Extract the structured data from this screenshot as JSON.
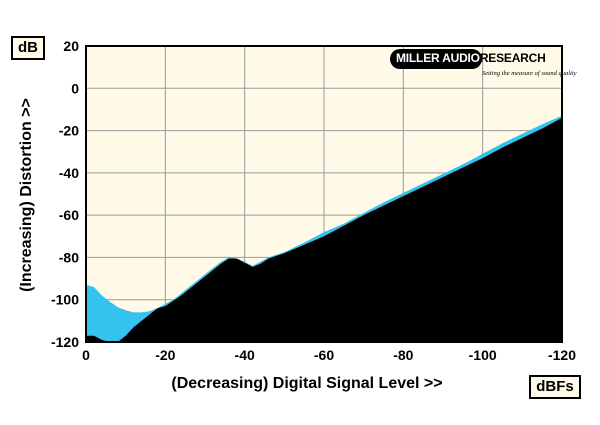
{
  "chart_data": {
    "type": "area",
    "xlabel": "(Decreasing) Digital Signal Level >>",
    "ylabel": "(Increasing) Distortion >>",
    "x_unit": "dBFs",
    "y_unit": "dB",
    "xlim": [
      0,
      -120
    ],
    "ylim": [
      -120,
      20
    ],
    "x_ticks": [
      "0",
      "-20",
      "-40",
      "-60",
      "-80",
      "-100",
      "-120"
    ],
    "y_ticks": [
      "20",
      "0",
      "-20",
      "-40",
      "-60",
      "-80",
      "-100",
      "-120"
    ],
    "grid": true,
    "series": [
      {
        "color": "#33c3ee",
        "x": [
          0,
          -2,
          -4,
          -6,
          -8,
          -10,
          -12,
          -14,
          -16,
          -18,
          -20,
          -22,
          -24,
          -26,
          -28,
          -30,
          -32,
          -34,
          -36,
          -38,
          -40,
          -42,
          -44,
          -46,
          -50,
          -55,
          -60,
          -65,
          -70,
          -75,
          -80,
          -85,
          -90,
          -95,
          -100,
          -105,
          -110,
          -115,
          -120
        ],
        "y": [
          -93,
          -94,
          -98,
          -101,
          -103.5,
          -105,
          -106,
          -106,
          -105.5,
          -104,
          -102,
          -100,
          -97,
          -94,
          -91,
          -88,
          -85,
          -82,
          -80,
          -80.5,
          -82,
          -84,
          -82,
          -80,
          -77.5,
          -73,
          -68,
          -64,
          -59,
          -54,
          -49.5,
          -45,
          -40.5,
          -36,
          -31,
          -26,
          -21.5,
          -17,
          -13
        ]
      },
      {
        "color": "#000000",
        "x": [
          0,
          -2,
          -4,
          -6,
          -8,
          -10,
          -12,
          -14,
          -16,
          -18,
          -20,
          -22,
          -24,
          -26,
          -28,
          -30,
          -32,
          -34,
          -36,
          -38,
          -40,
          -42,
          -44,
          -46,
          -50,
          -55,
          -60,
          -65,
          -70,
          -75,
          -80,
          -85,
          -90,
          -95,
          -100,
          -105,
          -110,
          -115,
          -120
        ],
        "y": [
          -117,
          -117,
          -119,
          -120,
          -120,
          -117,
          -113,
          -110,
          -107,
          -104,
          -103,
          -100.5,
          -98,
          -95,
          -92,
          -89,
          -86,
          -83,
          -80.5,
          -80.5,
          -82.5,
          -84.5,
          -83,
          -80.5,
          -78,
          -74,
          -70,
          -65,
          -60,
          -55.5,
          -51,
          -46.5,
          -42,
          -37.5,
          -33,
          -28,
          -23.5,
          -19,
          -14
        ]
      }
    ]
  },
  "logo": {
    "name": "MILLER AUDIO RESEARCH",
    "name_highlight": "MILLER AUDIO",
    "name_rest": "RESEARCH",
    "tagline": "Setting the measure of sound quality"
  },
  "colors": {
    "background": "#fffbe8",
    "grid": "#9a9a9a"
  }
}
